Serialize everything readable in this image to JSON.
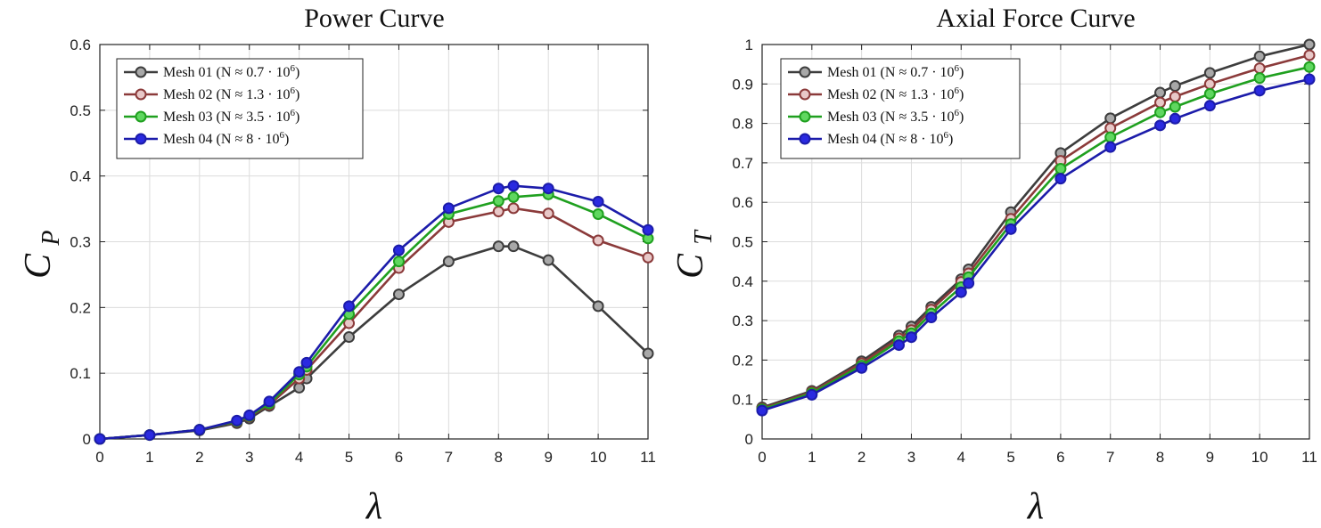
{
  "chart_data": [
    {
      "type": "line",
      "title": "Power Curve",
      "xlabel": "λ",
      "ylabel_main": "C",
      "ylabel_sub": "P",
      "xlim": [
        0,
        11
      ],
      "ylim": [
        0,
        0.6
      ],
      "xticks": [
        0,
        1,
        2,
        3,
        4,
        5,
        6,
        7,
        8,
        9,
        10,
        11
      ],
      "xtick_labels": [
        "0",
        "1",
        "2",
        "3",
        "4",
        "5",
        "6",
        "7",
        "8",
        "9",
        "10",
        "11"
      ],
      "yticks": [
        0,
        0.1,
        0.2,
        0.3,
        0.4,
        0.5,
        0.6
      ],
      "ytick_labels": [
        "0",
        "0.1",
        "0.2",
        "0.3",
        "0.4",
        "0.5",
        "0.6"
      ],
      "grid": true,
      "legend_position": "top-left",
      "x": [
        0,
        1,
        2,
        2.75,
        3,
        3.4,
        4,
        4.15,
        5,
        6,
        7,
        8,
        8.3,
        9,
        10,
        11
      ],
      "series": [
        {
          "name": "Mesh 01",
          "legend_label": "Mesh 01 (N ≈ 0.7 · 10",
          "legend_exp": "6",
          "legend_tail": ")",
          "color": "#3d3d3d",
          "fill": "#a8a8a8",
          "values": [
            0,
            0.006,
            0.013,
            0.024,
            0.031,
            0.05,
            0.078,
            0.092,
            0.155,
            0.22,
            0.27,
            0.293,
            0.293,
            0.272,
            0.202,
            0.13
          ]
        },
        {
          "name": "Mesh 02",
          "legend_label": "Mesh 02 (N ≈ 1.3 · 10",
          "legend_exp": "6",
          "legend_tail": ")",
          "color": "#8b3a3a",
          "fill": "#e8c8c8",
          "values": [
            0,
            0.006,
            0.014,
            0.026,
            0.034,
            0.052,
            0.092,
            0.105,
            0.176,
            0.26,
            0.33,
            0.346,
            0.351,
            0.343,
            0.302,
            0.276
          ]
        },
        {
          "name": "Mesh 03",
          "legend_label": "Mesh 03 (N ≈ 3.5 · 10",
          "legend_exp": "6",
          "legend_tail": ")",
          "color": "#1fa01f",
          "fill": "#5fd75f",
          "values": [
            0,
            0.006,
            0.014,
            0.027,
            0.035,
            0.054,
            0.098,
            0.11,
            0.19,
            0.27,
            0.342,
            0.362,
            0.368,
            0.372,
            0.342,
            0.305
          ]
        },
        {
          "name": "Mesh 04",
          "legend_label": "Mesh 04 (N ≈ 8 · 10",
          "legend_exp": "6",
          "legend_tail": ")",
          "color": "#1c1caa",
          "fill": "#2a2ae0",
          "values": [
            0,
            0.006,
            0.014,
            0.028,
            0.036,
            0.057,
            0.102,
            0.116,
            0.202,
            0.287,
            0.351,
            0.381,
            0.385,
            0.381,
            0.361,
            0.318
          ]
        }
      ]
    },
    {
      "type": "line",
      "title": "Axial Force Curve",
      "xlabel": "λ",
      "ylabel_main": "C",
      "ylabel_sub": "T",
      "xlim": [
        0,
        11
      ],
      "ylim": [
        0,
        1
      ],
      "xticks": [
        0,
        1,
        2,
        3,
        4,
        5,
        6,
        7,
        8,
        9,
        10,
        11
      ],
      "xtick_labels": [
        "0",
        "1",
        "2",
        "3",
        "4",
        "5",
        "6",
        "7",
        "8",
        "9",
        "10",
        "11"
      ],
      "yticks": [
        0,
        0.1,
        0.2,
        0.3,
        0.4,
        0.5,
        0.6,
        0.7,
        0.8,
        0.9,
        1
      ],
      "ytick_labels": [
        "0",
        "0.1",
        "0.2",
        "0.3",
        "0.4",
        "0.5",
        "0.6",
        "0.7",
        "0.8",
        "0.9",
        "1"
      ],
      "grid": true,
      "legend_position": "top-left",
      "x": [
        0,
        1,
        2,
        2.75,
        3,
        3.4,
        4,
        4.15,
        5,
        6,
        7,
        8,
        8.3,
        9,
        10,
        11
      ],
      "series": [
        {
          "name": "Mesh 01",
          "legend_label": "Mesh 01 (N ≈ 0.7 · 10",
          "legend_exp": "6",
          "legend_tail": ")",
          "color": "#3d3d3d",
          "fill": "#a8a8a8",
          "values": [
            0.08,
            0.122,
            0.197,
            0.262,
            0.285,
            0.335,
            0.405,
            0.43,
            0.575,
            0.725,
            0.813,
            0.878,
            0.895,
            0.928,
            0.97,
            1.0
          ]
        },
        {
          "name": "Mesh 02",
          "legend_label": "Mesh 02 (N ≈ 1.3 · 10",
          "legend_exp": "6",
          "legend_tail": ")",
          "color": "#8b3a3a",
          "fill": "#e8c8c8",
          "values": [
            0.077,
            0.119,
            0.192,
            0.255,
            0.276,
            0.328,
            0.398,
            0.42,
            0.558,
            0.705,
            0.788,
            0.853,
            0.868,
            0.9,
            0.94,
            0.973
          ]
        },
        {
          "name": "Mesh 03",
          "legend_label": "Mesh 03 (N ≈ 3.5 · 10",
          "legend_exp": "6",
          "legend_tail": ")",
          "color": "#1fa01f",
          "fill": "#5fd75f",
          "values": [
            0.075,
            0.116,
            0.186,
            0.248,
            0.268,
            0.318,
            0.385,
            0.41,
            0.545,
            0.685,
            0.765,
            0.828,
            0.842,
            0.875,
            0.915,
            0.943
          ]
        },
        {
          "name": "Mesh 04",
          "legend_label": "Mesh 04 (N ≈ 8 · 10",
          "legend_exp": "6",
          "legend_tail": ")",
          "color": "#1c1caa",
          "fill": "#2a2ae0",
          "values": [
            0.072,
            0.112,
            0.18,
            0.238,
            0.258,
            0.308,
            0.372,
            0.395,
            0.532,
            0.66,
            0.74,
            0.795,
            0.812,
            0.845,
            0.883,
            0.912
          ]
        }
      ]
    }
  ]
}
